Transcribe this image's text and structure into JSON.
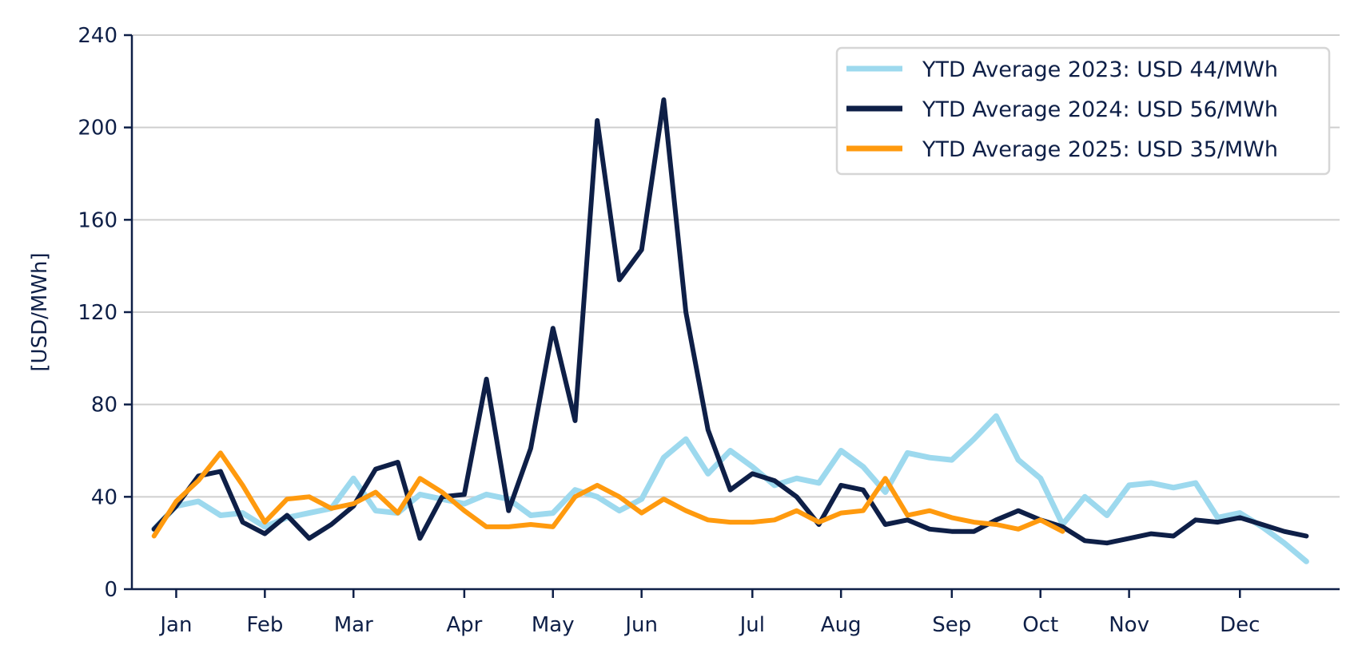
{
  "chart_data": {
    "type": "line",
    "ylabel": "[USD/MWh]",
    "ylim": [
      0,
      240
    ],
    "yticks": [
      0,
      40,
      80,
      120,
      160,
      200,
      240
    ],
    "x_range": [
      0,
      54.5
    ],
    "month_ticks": [
      {
        "label": "Jan",
        "x": 2
      },
      {
        "label": "Feb",
        "x": 6
      },
      {
        "label": "Mar",
        "x": 10
      },
      {
        "label": "Apr",
        "x": 15
      },
      {
        "label": "May",
        "x": 19
      },
      {
        "label": "Jun",
        "x": 23
      },
      {
        "label": "Jul",
        "x": 28
      },
      {
        "label": "Aug",
        "x": 32
      },
      {
        "label": "Sep",
        "x": 37
      },
      {
        "label": "Oct",
        "x": 41
      },
      {
        "label": "Nov",
        "x": 45
      },
      {
        "label": "Dec",
        "x": 50
      }
    ],
    "grid": true,
    "legend": "top-right",
    "series": [
      {
        "name": "YTD Average 2023: USD 44/MWh",
        "color": "#9dd9ee",
        "values": [
          26,
          36,
          38,
          32,
          33,
          27,
          31,
          33,
          35,
          48,
          34,
          33,
          41,
          39,
          37,
          41,
          39,
          32,
          33,
          43,
          40,
          34,
          39,
          57,
          65,
          50,
          60,
          53,
          45,
          48,
          46,
          60,
          53,
          42,
          59,
          57,
          56,
          65,
          75,
          56,
          48,
          28,
          40,
          32,
          45,
          46,
          44,
          46,
          31,
          33,
          27,
          20,
          12
        ]
      },
      {
        "name": "YTD Average 2024: USD 56/MWh",
        "color": "#0e1f47",
        "values": [
          26,
          36,
          49,
          51,
          29,
          24,
          32,
          22,
          28,
          36,
          52,
          55,
          22,
          40,
          41,
          91,
          34,
          61,
          113,
          73,
          203,
          134,
          147,
          212,
          120,
          69,
          43,
          50,
          47,
          40,
          28,
          45,
          43,
          28,
          30,
          26,
          25,
          25,
          30,
          34,
          30,
          27,
          21,
          20,
          22,
          24,
          23,
          30,
          29,
          31,
          28,
          25,
          23
        ]
      },
      {
        "name": "YTD Average 2025: USD 35/MWh",
        "color": "#ff9a0e",
        "values": [
          23,
          38,
          47,
          59,
          45,
          29,
          39,
          40,
          35,
          37,
          42,
          33,
          48,
          42,
          34,
          27,
          27,
          28,
          27,
          40,
          45,
          40,
          33,
          39,
          34,
          30,
          29,
          29,
          30,
          34,
          29,
          33,
          34,
          48,
          32,
          34,
          31,
          29,
          28,
          26,
          30,
          25
        ]
      }
    ]
  }
}
